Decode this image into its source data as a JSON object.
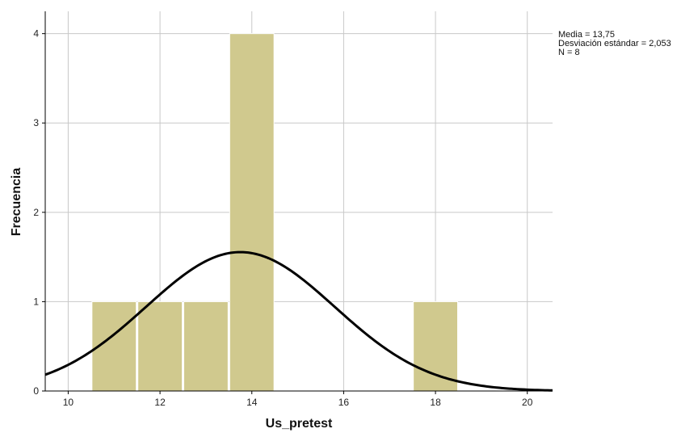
{
  "chart_data": {
    "type": "bar",
    "subtype": "histogram",
    "title": "",
    "xlabel": "Us_pretest",
    "ylabel": "Frecuencia",
    "xlim": [
      9.5,
      20.55
    ],
    "ylim": [
      0,
      4.25
    ],
    "x_ticks": [
      "10",
      "12",
      "14",
      "16",
      "18",
      "20"
    ],
    "x_tick_values": [
      10,
      12,
      14,
      16,
      18,
      20
    ],
    "y_ticks": [
      "0",
      "1",
      "2",
      "3",
      "4"
    ],
    "y_tick_values": [
      0,
      1,
      2,
      3,
      4
    ],
    "bin_width": 1,
    "bins": [
      {
        "center": 11,
        "value": 1
      },
      {
        "center": 12,
        "value": 1
      },
      {
        "center": 13,
        "value": 1
      },
      {
        "center": 14,
        "value": 4
      },
      {
        "center": 18,
        "value": 1
      }
    ],
    "normal_curve": {
      "mean": 13.75,
      "sd": 2.053,
      "n": 8
    },
    "grid": true,
    "bar_color": "#d0c98e",
    "curve_color": "#000000",
    "grid_color": "#c8c8c8",
    "stats": [
      "Media = 13,75",
      "Desviación estándar = 2,053",
      "N = 8"
    ],
    "legend_position": "top-right"
  }
}
